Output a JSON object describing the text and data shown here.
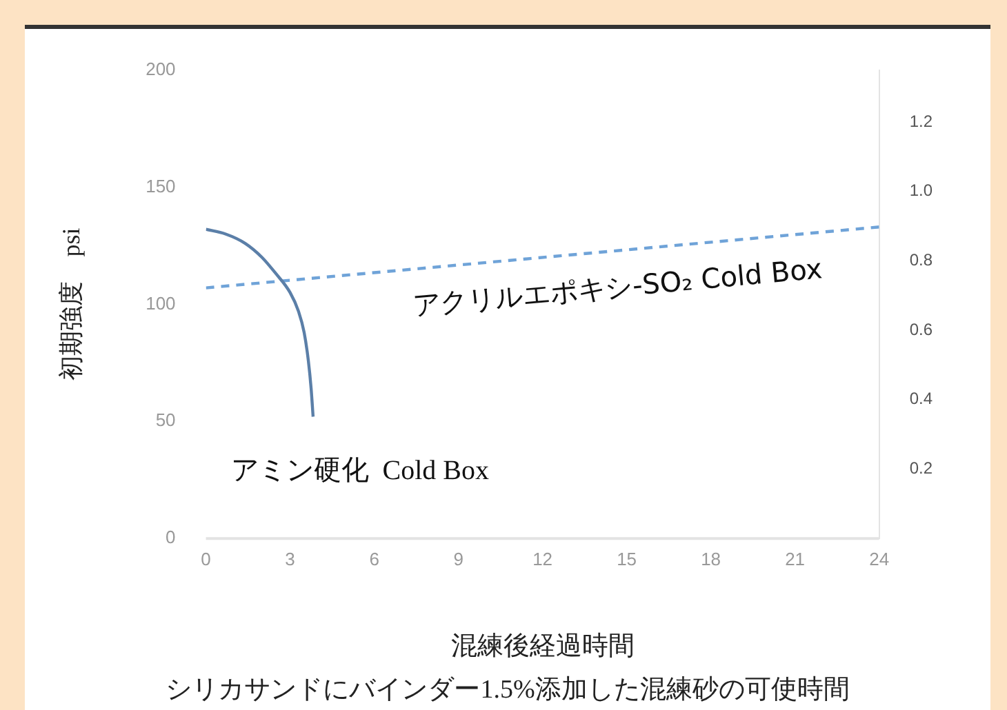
{
  "chart_data": {
    "type": "line",
    "title": "シリカサンドにバインダー1.5%添加した混練砂の可使時間",
    "xlabel": "混練後経過時間",
    "ylabel": "初期強度　psi",
    "xlim": [
      0,
      24
    ],
    "xticks": [
      0,
      3,
      6,
      9,
      12,
      15,
      18,
      21,
      24
    ],
    "ylim": [
      0,
      200
    ],
    "yticks": [
      0,
      50,
      100,
      150,
      200
    ],
    "y2lim": [
      0,
      1.35
    ],
    "y2ticks": [
      0.2,
      0.4,
      0.6,
      0.8,
      {
        "value": 1,
        "label": "1.0"
      },
      1.2
    ],
    "grid": false,
    "legend": false,
    "marker": "none",
    "series": [
      {
        "name": "アミン硬化  Cold Box",
        "color": "#5b7fa8",
        "line_style": "solid",
        "x": [
          0,
          0.7,
          1.4,
          2,
          2.5,
          3,
          3.3,
          3.5,
          3.65,
          3.75,
          3.82
        ],
        "values": [
          132,
          130,
          126,
          120,
          113,
          105,
          97,
          88,
          76,
          64,
          52
        ]
      },
      {
        "name": "アクリルエポキシ-SO₂ Cold Box",
        "color": "#6fa3d8",
        "line_style": "dashed",
        "x": [
          0,
          24
        ],
        "values": [
          107,
          133
        ]
      }
    ]
  }
}
